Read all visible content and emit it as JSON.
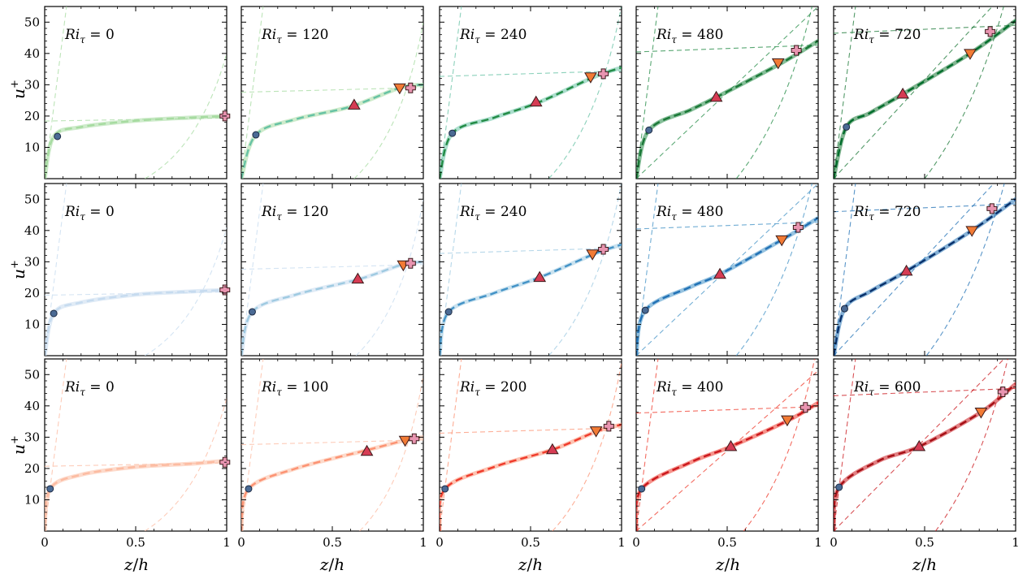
{
  "figure": {
    "xlabel_main": "z",
    "xlabel_sep": "/",
    "xlabel_den": "h",
    "ylabel_main": "u",
    "ylabel_sup": "+",
    "ri_prefix": "Ri",
    "ri_sub": "τ",
    "ri_eq": " = ",
    "x_ticks": [
      "0",
      "0.5",
      "1"
    ],
    "x_tick_values": [
      0,
      0.5,
      1
    ],
    "y_ticks": [
      "10",
      "20",
      "30",
      "40",
      "50"
    ],
    "y_tick_values": [
      10,
      20,
      30,
      40,
      50
    ],
    "xlim": [
      0,
      1
    ],
    "ylim": [
      0,
      55
    ],
    "colors": {
      "row_0": [
        "#a6dba0",
        "#66c2a4",
        "#238b45",
        "#1b7837",
        "#006d2c"
      ],
      "row_1": [
        "#c6dbef",
        "#9ecae1",
        "#4292c6",
        "#2171b5",
        "#08306b"
      ],
      "row_2": [
        "#fcbba1",
        "#fc9272",
        "#ef3b2c",
        "#cb181d",
        "#a50f15"
      ],
      "circle": "#4a6a94",
      "triangle_up": "#d63c54",
      "triangle_down": "#f27b35",
      "plus": "#e894b0"
    }
  },
  "chart_data": [
    {
      "type": "line",
      "row": 0,
      "col": 0,
      "ri": "0",
      "ri_value": 0,
      "series": [
        {
          "name": "profile",
          "x": [
            0,
            0.05,
            0.2,
            0.5,
            0.8,
            1.0
          ],
          "y": [
            0,
            13.5,
            16.5,
            18.5,
            19.5,
            20
          ]
        }
      ],
      "markers": {
        "circle": [
          0.07,
          13.5
        ],
        "plus": [
          0.99,
          20
        ]
      }
    },
    {
      "type": "line",
      "row": 0,
      "col": 1,
      "ri": "120",
      "ri_value": 120,
      "series": [
        {
          "name": "profile",
          "x": [
            0,
            0.08,
            0.3,
            0.6,
            0.87,
            1.0
          ],
          "y": [
            0,
            14,
            19,
            23,
            29,
            30
          ]
        }
      ],
      "markers": {
        "circle": [
          0.08,
          14
        ],
        "triangle_up": [
          0.62,
          23.5
        ],
        "triangle_down": [
          0.87,
          29
        ],
        "plus": [
          0.93,
          29
        ]
      }
    },
    {
      "type": "line",
      "row": 0,
      "col": 2,
      "ri": "240",
      "ri_value": 240,
      "series": [
        {
          "name": "profile",
          "x": [
            0,
            0.07,
            0.3,
            0.55,
            0.85,
            1.0
          ],
          "y": [
            0,
            14.5,
            19.5,
            24.5,
            32.5,
            35.5
          ]
        }
      ],
      "markers": {
        "circle": [
          0.07,
          14.5
        ],
        "triangle_up": [
          0.53,
          24.5
        ],
        "triangle_down": [
          0.83,
          32.5
        ],
        "plus": [
          0.9,
          33.5
        ]
      }
    },
    {
      "type": "line",
      "row": 0,
      "col": 3,
      "ri": "480",
      "ri_value": 480,
      "series": [
        {
          "name": "profile",
          "x": [
            0,
            0.07,
            0.3,
            0.44,
            0.8,
            1.0
          ],
          "y": [
            0,
            15.5,
            22,
            26,
            37,
            44
          ]
        }
      ],
      "markers": {
        "circle": [
          0.07,
          15.5
        ],
        "triangle_up": [
          0.44,
          26
        ],
        "triangle_down": [
          0.78,
          37
        ],
        "plus": [
          0.88,
          41
        ]
      }
    },
    {
      "type": "line",
      "row": 0,
      "col": 4,
      "ri": "720",
      "ri_value": 720,
      "series": [
        {
          "name": "profile",
          "x": [
            0,
            0.07,
            0.2,
            0.38,
            0.75,
            1.0
          ],
          "y": [
            0,
            16.5,
            21,
            27,
            40,
            50.5
          ]
        }
      ],
      "markers": {
        "circle": [
          0.07,
          16.5
        ],
        "triangle_up": [
          0.38,
          27
        ],
        "triangle_down": [
          0.75,
          40
        ],
        "plus": [
          0.86,
          47
        ]
      }
    },
    {
      "type": "line",
      "row": 1,
      "col": 0,
      "ri": "0",
      "ri_value": 0,
      "series": [
        {
          "name": "profile",
          "x": [
            0,
            0.05,
            0.2,
            0.5,
            0.8,
            1.0
          ],
          "y": [
            0,
            13.5,
            17,
            19.5,
            20.5,
            21
          ]
        }
      ],
      "markers": {
        "circle": [
          0.05,
          13.5
        ],
        "plus": [
          0.99,
          21
        ]
      }
    },
    {
      "type": "line",
      "row": 1,
      "col": 1,
      "ri": "120",
      "ri_value": 120,
      "series": [
        {
          "name": "profile",
          "x": [
            0,
            0.06,
            0.3,
            0.65,
            0.88,
            1.0
          ],
          "y": [
            0,
            14,
            19.5,
            24.5,
            29,
            30
          ]
        }
      ],
      "markers": {
        "circle": [
          0.06,
          14
        ],
        "triangle_up": [
          0.64,
          24.5
        ],
        "triangle_down": [
          0.89,
          29
        ],
        "plus": [
          0.93,
          29.5
        ]
      }
    },
    {
      "type": "line",
      "row": 1,
      "col": 2,
      "ri": "240",
      "ri_value": 240,
      "series": [
        {
          "name": "profile",
          "x": [
            0,
            0.05,
            0.3,
            0.55,
            0.85,
            1.0
          ],
          "y": [
            0,
            14,
            20,
            25,
            32.5,
            35.5
          ]
        }
      ],
      "markers": {
        "circle": [
          0.05,
          14
        ],
        "triangle_up": [
          0.55,
          25
        ],
        "triangle_down": [
          0.84,
          32.5
        ],
        "plus": [
          0.9,
          34
        ]
      }
    },
    {
      "type": "line",
      "row": 1,
      "col": 3,
      "ri": "480",
      "ri_value": 480,
      "series": [
        {
          "name": "profile",
          "x": [
            0,
            0.05,
            0.3,
            0.46,
            0.8,
            1.0
          ],
          "y": [
            0,
            14.5,
            22,
            26,
            37,
            44
          ]
        }
      ],
      "markers": {
        "circle": [
          0.05,
          14.5
        ],
        "triangle_up": [
          0.46,
          26
        ],
        "triangle_down": [
          0.8,
          37
        ],
        "plus": [
          0.89,
          41
        ]
      }
    },
    {
      "type": "line",
      "row": 1,
      "col": 4,
      "ri": "720",
      "ri_value": 720,
      "series": [
        {
          "name": "profile",
          "x": [
            0,
            0.06,
            0.2,
            0.4,
            0.76,
            1.0
          ],
          "y": [
            0,
            15,
            20.5,
            27,
            40,
            50
          ]
        }
      ],
      "markers": {
        "circle": [
          0.06,
          15
        ],
        "triangle_up": [
          0.4,
          27
        ],
        "triangle_down": [
          0.76,
          40
        ],
        "plus": [
          0.87,
          47
        ]
      }
    },
    {
      "type": "line",
      "row": 2,
      "col": 0,
      "ri": "0",
      "ri_value": 0,
      "series": [
        {
          "name": "profile",
          "x": [
            0,
            0.03,
            0.2,
            0.5,
            0.8,
            1.0
          ],
          "y": [
            0,
            13.5,
            18,
            20.5,
            21.5,
            22.5
          ]
        }
      ],
      "markers": {
        "circle": [
          0.03,
          13.5
        ],
        "plus": [
          0.99,
          22
        ]
      }
    },
    {
      "type": "line",
      "row": 2,
      "col": 1,
      "ri": "100",
      "ri_value": 100,
      "series": [
        {
          "name": "profile",
          "x": [
            0,
            0.04,
            0.3,
            0.7,
            0.9,
            1.0
          ],
          "y": [
            0,
            13.5,
            20,
            26,
            29,
            30
          ]
        }
      ],
      "markers": {
        "circle": [
          0.04,
          13.5
        ],
        "triangle_up": [
          0.69,
          25.5
        ],
        "triangle_down": [
          0.9,
          29
        ],
        "plus": [
          0.95,
          29.5
        ]
      }
    },
    {
      "type": "line",
      "row": 2,
      "col": 2,
      "ri": "200",
      "ri_value": 200,
      "series": [
        {
          "name": "profile",
          "x": [
            0,
            0.03,
            0.3,
            0.62,
            0.87,
            1.0
          ],
          "y": [
            0,
            13.5,
            20.5,
            26,
            32,
            34
          ]
        }
      ],
      "markers": {
        "circle": [
          0.03,
          13.5
        ],
        "triangle_up": [
          0.62,
          26
        ],
        "triangle_down": [
          0.86,
          32
        ],
        "plus": [
          0.93,
          33.5
        ]
      }
    },
    {
      "type": "line",
      "row": 2,
      "col": 3,
      "ri": "400",
      "ri_value": 400,
      "series": [
        {
          "name": "profile",
          "x": [
            0,
            0.03,
            0.3,
            0.52,
            0.84,
            1.0
          ],
          "y": [
            0,
            13.5,
            22,
            27,
            35.5,
            41
          ]
        }
      ],
      "markers": {
        "circle": [
          0.03,
          13.5
        ],
        "triangle_up": [
          0.52,
          27
        ],
        "triangle_down": [
          0.83,
          35.5
        ],
        "plus": [
          0.93,
          39.5
        ]
      }
    },
    {
      "type": "line",
      "row": 2,
      "col": 4,
      "ri": "600",
      "ri_value": 600,
      "series": [
        {
          "name": "profile",
          "x": [
            0,
            0.03,
            0.25,
            0.47,
            0.81,
            1.0
          ],
          "y": [
            0,
            14,
            22.5,
            27,
            38,
            47
          ]
        }
      ],
      "markers": {
        "circle": [
          0.03,
          14
        ],
        "triangle_up": [
          0.47,
          27
        ],
        "triangle_down": [
          0.81,
          38
        ],
        "plus": [
          0.93,
          44.5
        ]
      }
    }
  ]
}
